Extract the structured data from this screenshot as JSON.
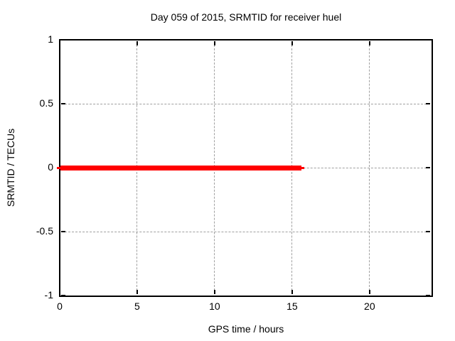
{
  "chart_data": {
    "type": "line",
    "title": "Day 059 of 2015, SRMTID for receiver huel",
    "xlabel": "GPS time / hours",
    "ylabel": "SRMTID / TECUs",
    "xlim": [
      0,
      24
    ],
    "ylim": [
      -1,
      1
    ],
    "grid": true,
    "legend_position": "none",
    "xticks": [
      {
        "value": 0,
        "label": "0"
      },
      {
        "value": 5,
        "label": "5"
      },
      {
        "value": 10,
        "label": "10"
      },
      {
        "value": 15,
        "label": "15"
      },
      {
        "value": 20,
        "label": "20"
      }
    ],
    "yticks": [
      {
        "value": -1,
        "label": "-1"
      },
      {
        "value": -0.5,
        "label": "-0.5"
      },
      {
        "value": 0,
        "label": "0"
      },
      {
        "value": 0.5,
        "label": "0.5"
      },
      {
        "value": 1,
        "label": "1"
      }
    ],
    "series": [
      {
        "name": "SRMTID",
        "color": "#ff0000",
        "description": "constant zero value from 0 to about 15.6 hours, drawn as a thick horizontal red bar with thin tail ends",
        "x": [
          0,
          15.6
        ],
        "y": [
          0,
          0
        ],
        "segments": [
          {
            "x1": -0.18,
            "x2": 15.8,
            "y": 0,
            "thickness_px": 3
          },
          {
            "x1": 0.05,
            "x2": 15.62,
            "y": 0,
            "thickness_px": 7
          }
        ]
      }
    ],
    "colors": {
      "background": "#ffffff",
      "frame": "#000000",
      "grid": "#a0a0a0",
      "text": "#000000",
      "series": "#ff0000"
    }
  }
}
